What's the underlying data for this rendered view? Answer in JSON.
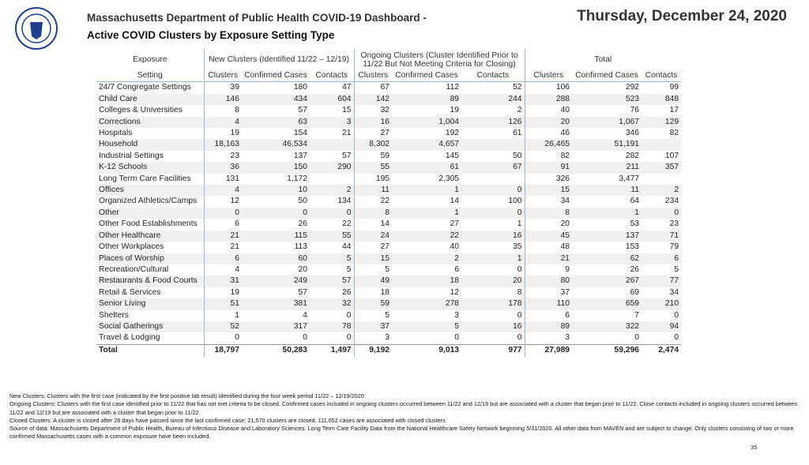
{
  "header": {
    "title": "Massachusetts Department of Public Health COVID-19 Dashboard -",
    "subtitle": "Active COVID Clusters by Exposure Setting Type",
    "date": "Thursday, December 24, 2020"
  },
  "table": {
    "groups": [
      "Exposure",
      "New Clusters (Identified 11/22 – 12/19)",
      "Ongoing Clusters (Cluster Identified Prior to 11/22 But Not Meeting Criteria for Closing)",
      "Total"
    ],
    "columns": [
      "Setting",
      "Clusters",
      "Confirmed Cases",
      "Contacts",
      "Clusters",
      "Confirmed Cases",
      "Contacts",
      "Clusters",
      "Confirmed Cases",
      "Contacts"
    ],
    "rows": [
      [
        "24/7 Congregate Settings",
        "39",
        "180",
        "47",
        "67",
        "112",
        "52",
        "106",
        "292",
        "99"
      ],
      [
        "Child Care",
        "146",
        "434",
        "604",
        "142",
        "89",
        "244",
        "288",
        "523",
        "848"
      ],
      [
        "Colleges & Universities",
        "8",
        "57",
        "15",
        "32",
        "19",
        "2",
        "40",
        "76",
        "17"
      ],
      [
        "Corrections",
        "4",
        "63",
        "3",
        "16",
        "1,004",
        "126",
        "20",
        "1,067",
        "129"
      ],
      [
        "Hospitals",
        "19",
        "154",
        "21",
        "27",
        "192",
        "61",
        "46",
        "346",
        "82"
      ],
      [
        "Household",
        "18,163",
        "46,534",
        null,
        "8,302",
        "4,657",
        null,
        "26,465",
        "51,191",
        null
      ],
      [
        "Industrial Settings",
        "23",
        "137",
        "57",
        "59",
        "145",
        "50",
        "82",
        "282",
        "107"
      ],
      [
        "K-12 Schools",
        "36",
        "150",
        "290",
        "55",
        "61",
        "67",
        "91",
        "211",
        "357"
      ],
      [
        "Long Term Care Facilities",
        "131",
        "1,172",
        null,
        "195",
        "2,305",
        null,
        "326",
        "3,477",
        null
      ],
      [
        "Offices",
        "4",
        "10",
        "2",
        "11",
        "1",
        "0",
        "15",
        "11",
        "2"
      ],
      [
        "Organized Athletics/Camps",
        "12",
        "50",
        "134",
        "22",
        "14",
        "100",
        "34",
        "64",
        "234"
      ],
      [
        "Other",
        "0",
        "0",
        "0",
        "8",
        "1",
        "0",
        "8",
        "1",
        "0"
      ],
      [
        "Other Food Establishments",
        "6",
        "26",
        "22",
        "14",
        "27",
        "1",
        "20",
        "53",
        "23"
      ],
      [
        "Other Healthcare",
        "21",
        "115",
        "55",
        "24",
        "22",
        "16",
        "45",
        "137",
        "71"
      ],
      [
        "Other Workplaces",
        "21",
        "113",
        "44",
        "27",
        "40",
        "35",
        "48",
        "153",
        "79"
      ],
      [
        "Places of Worship",
        "6",
        "60",
        "5",
        "15",
        "2",
        "1",
        "21",
        "62",
        "6"
      ],
      [
        "Recreation/Cultural",
        "4",
        "20",
        "5",
        "5",
        "6",
        "0",
        "9",
        "26",
        "5"
      ],
      [
        "Restaurants & Food Courts",
        "31",
        "249",
        "57",
        "49",
        "18",
        "20",
        "80",
        "267",
        "77"
      ],
      [
        "Retail & Services",
        "19",
        "57",
        "26",
        "18",
        "12",
        "8",
        "37",
        "69",
        "34"
      ],
      [
        "Senior Living",
        "51",
        "381",
        "32",
        "59",
        "278",
        "178",
        "110",
        "659",
        "210"
      ],
      [
        "Shelters",
        "1",
        "4",
        "0",
        "5",
        "3",
        "0",
        "6",
        "7",
        "0"
      ],
      [
        "Social Gatherings",
        "52",
        "317",
        "78",
        "37",
        "5",
        "16",
        "89",
        "322",
        "94"
      ],
      [
        "Travel & Lodging",
        "0",
        "0",
        "0",
        "3",
        "0",
        "0",
        "3",
        "0",
        "0"
      ]
    ],
    "total": [
      "Total",
      "18,797",
      "50,283",
      "1,497",
      "9,192",
      "9,013",
      "977",
      "27,989",
      "59,296",
      "2,474"
    ]
  },
  "notes": [
    "New Clusters: Clusters with the first case (indicated by the first positive lab result) identified during the four week period 11/22 – 12/19/2020",
    "Ongoing Clusters: Clusters with the first case identified prior to 11/22 that has not met criteria to be closed.  Confirmed cases included in ongoing clusters occurred between 11/22 and 12/19  but are associated with a cluster that began prior to 11/22. Close contacts included in ongoing clusters occurred between 11/22 and 12/19  but are associated with a cluster that began prior to 11/22",
    "Closed Clusters: A cluster is closed after 28 days have passed since the last confirmed case; 21,570 clusters are closed, 111,652 cases are associated with closed clusters",
    "Source of data: Massachusetts Department of Public Health, Bureau of Infectious Disease and Laboratory Sciences. Long Term Care Facility Data from the National Healthcare Safety Network beginning 5/31/2020.  All other data from MAVEN and are subject to change. Only clusters consisting of two or more confirmed Massachusetts cases with a common exposure have been included."
  ],
  "page_number": "35"
}
